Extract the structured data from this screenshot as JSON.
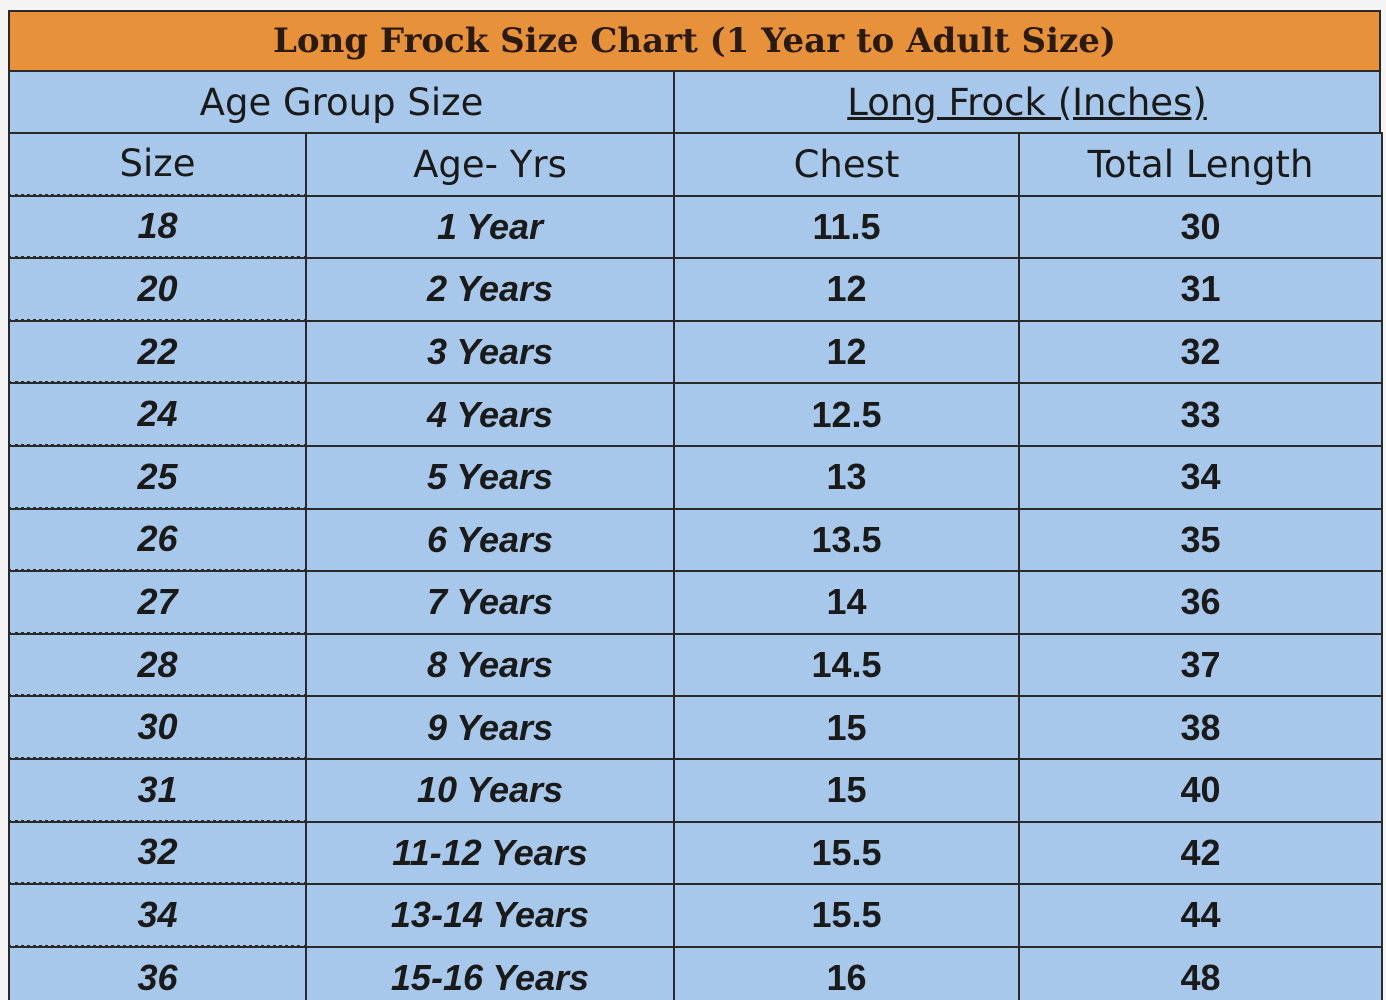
{
  "title": "Long Frock Size Chart (1 Year to Adult Size)",
  "groups": [
    "Age Group Size",
    "Long Frock (Inches)"
  ],
  "columns": [
    "Size",
    "Age- Yrs",
    "Chest",
    "Total Length"
  ],
  "rows": [
    [
      18,
      "1 Year",
      11.5,
      30
    ],
    [
      20,
      "2 Years",
      12,
      31
    ],
    [
      22,
      "3 Years",
      12,
      32
    ],
    [
      24,
      "4 Years",
      12.5,
      33
    ],
    [
      25,
      "5 Years",
      13,
      34
    ],
    [
      26,
      "6 Years",
      13.5,
      35
    ],
    [
      27,
      "7 Years",
      14,
      36
    ],
    [
      28,
      "8 Years",
      14.5,
      37
    ],
    [
      30,
      "9 Years",
      15,
      38
    ],
    [
      31,
      "10 Years",
      15,
      40
    ],
    [
      32,
      "11-12 Years",
      15.5,
      42
    ],
    [
      34,
      "13-14 Years",
      15.5,
      44
    ],
    [
      36,
      "15-16 Years",
      16,
      48
    ]
  ]
}
